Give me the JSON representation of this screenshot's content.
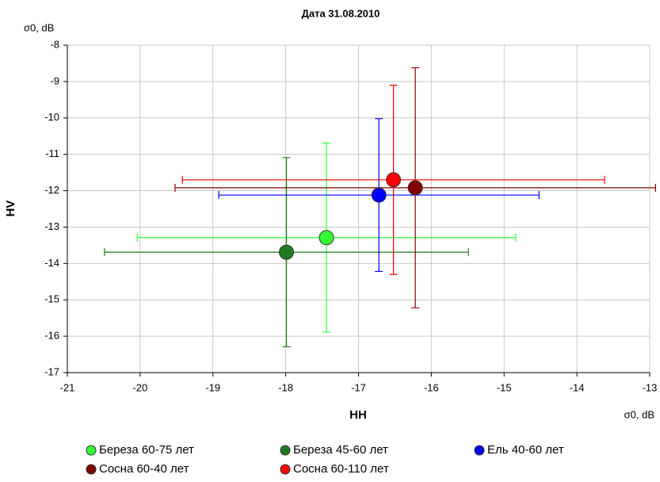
{
  "chart_data": {
    "type": "scatter",
    "title": "Дата 31.08.2010",
    "x_label": "HH",
    "y_label": "HV",
    "x_unit_label": "σ0, dB",
    "y_unit_label": "σ0, dB",
    "xlim": [
      -21,
      -13
    ],
    "ylim": [
      -17,
      -8
    ],
    "xticks": [
      -21,
      -20,
      -19,
      -18,
      -17,
      -16,
      -15,
      -14,
      -13
    ],
    "yticks": [
      -8,
      -9,
      -10,
      -11,
      -12,
      -13,
      -14,
      -15,
      -16,
      -17
    ],
    "grid": true,
    "legend": "bottom",
    "series": [
      {
        "name": "Береза 60-75 лет",
        "color": "#33ff33",
        "x": [
          -17.44
        ],
        "y": [
          -13.29
        ],
        "xerr": [
          2.6
        ],
        "yerr": [
          2.6
        ]
      },
      {
        "name": "Береза 45-60 лет",
        "color": "#1f7a1f",
        "x": [
          -17.99
        ],
        "y": [
          -13.69
        ],
        "xerr": [
          2.5
        ],
        "yerr": [
          2.6
        ]
      },
      {
        "name": "Ель 40-60 лет",
        "color": "#0000ff",
        "x": [
          -16.72
        ],
        "y": [
          -12.12
        ],
        "xerr": [
          2.2
        ],
        "yerr": [
          2.1
        ]
      },
      {
        "name": "Сосна 60-40 лет",
        "color": "#800000",
        "x": [
          -16.22
        ],
        "y": [
          -11.92
        ],
        "xerr": [
          3.3
        ],
        "yerr": [
          3.3
        ]
      },
      {
        "name": "Сосна 60-110 лет",
        "color": "#ff0000",
        "x": [
          -16.52
        ],
        "y": [
          -11.7
        ],
        "xerr": [
          2.9
        ],
        "yerr": [
          2.6
        ]
      }
    ]
  }
}
